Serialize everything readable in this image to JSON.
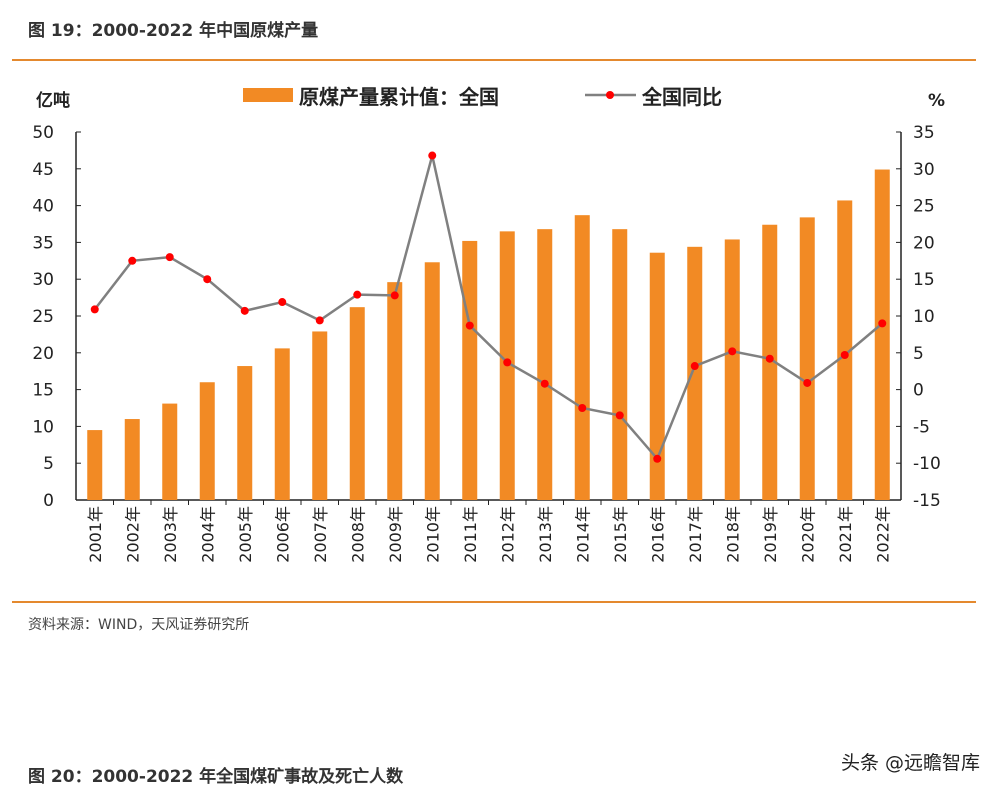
{
  "header": {
    "title": "图 19：2000-2022 年中国原煤产量"
  },
  "footer": {
    "source": "资料来源：WIND，天风证券研究所",
    "next_title": "图 20：2000-2022 年全国煤矿事故及死亡人数",
    "watermark": "头条 @远瞻智库"
  },
  "colors": {
    "bar": "#F28A24",
    "line": "#808080",
    "marker": "#FF0000",
    "rule": "#E4892E"
  },
  "chart_data": {
    "type": "bar+line",
    "categories": [
      "2001年",
      "2002年",
      "2003年",
      "2004年",
      "2005年",
      "2006年",
      "2007年",
      "2008年",
      "2009年",
      "2010年",
      "2011年",
      "2012年",
      "2013年",
      "2014年",
      "2015年",
      "2016年",
      "2017年",
      "2018年",
      "2019年",
      "2020年",
      "2021年",
      "2022年"
    ],
    "left_axis": {
      "label": "亿吨",
      "ylim": [
        0,
        50
      ],
      "ticks": [
        "0",
        "5",
        "10",
        "15",
        "20",
        "25",
        "30",
        "35",
        "40",
        "45",
        "50"
      ]
    },
    "right_axis": {
      "label": "%",
      "ylim": [
        -15,
        35
      ],
      "ticks": [
        "-15",
        "-10",
        "-5",
        "0",
        "5",
        "10",
        "15",
        "20",
        "25",
        "30",
        "35"
      ]
    },
    "legend_placement": "top",
    "series": [
      {
        "name": "原煤产量累计值：全国",
        "type": "bar",
        "axis": "left",
        "values": [
          9.5,
          11.0,
          13.1,
          16.0,
          18.2,
          20.6,
          22.9,
          26.2,
          29.6,
          32.3,
          35.2,
          36.5,
          36.8,
          38.7,
          36.8,
          33.6,
          34.4,
          35.4,
          37.4,
          38.4,
          40.7,
          44.9
        ]
      },
      {
        "name": "全国同比",
        "type": "line",
        "axis": "right",
        "values": [
          10.9,
          17.5,
          18.0,
          15.0,
          10.7,
          11.9,
          9.4,
          12.9,
          12.8,
          31.8,
          8.7,
          3.7,
          0.8,
          -2.5,
          -3.5,
          -9.4,
          3.2,
          5.2,
          4.2,
          0.9,
          4.7,
          9.0
        ]
      }
    ]
  }
}
